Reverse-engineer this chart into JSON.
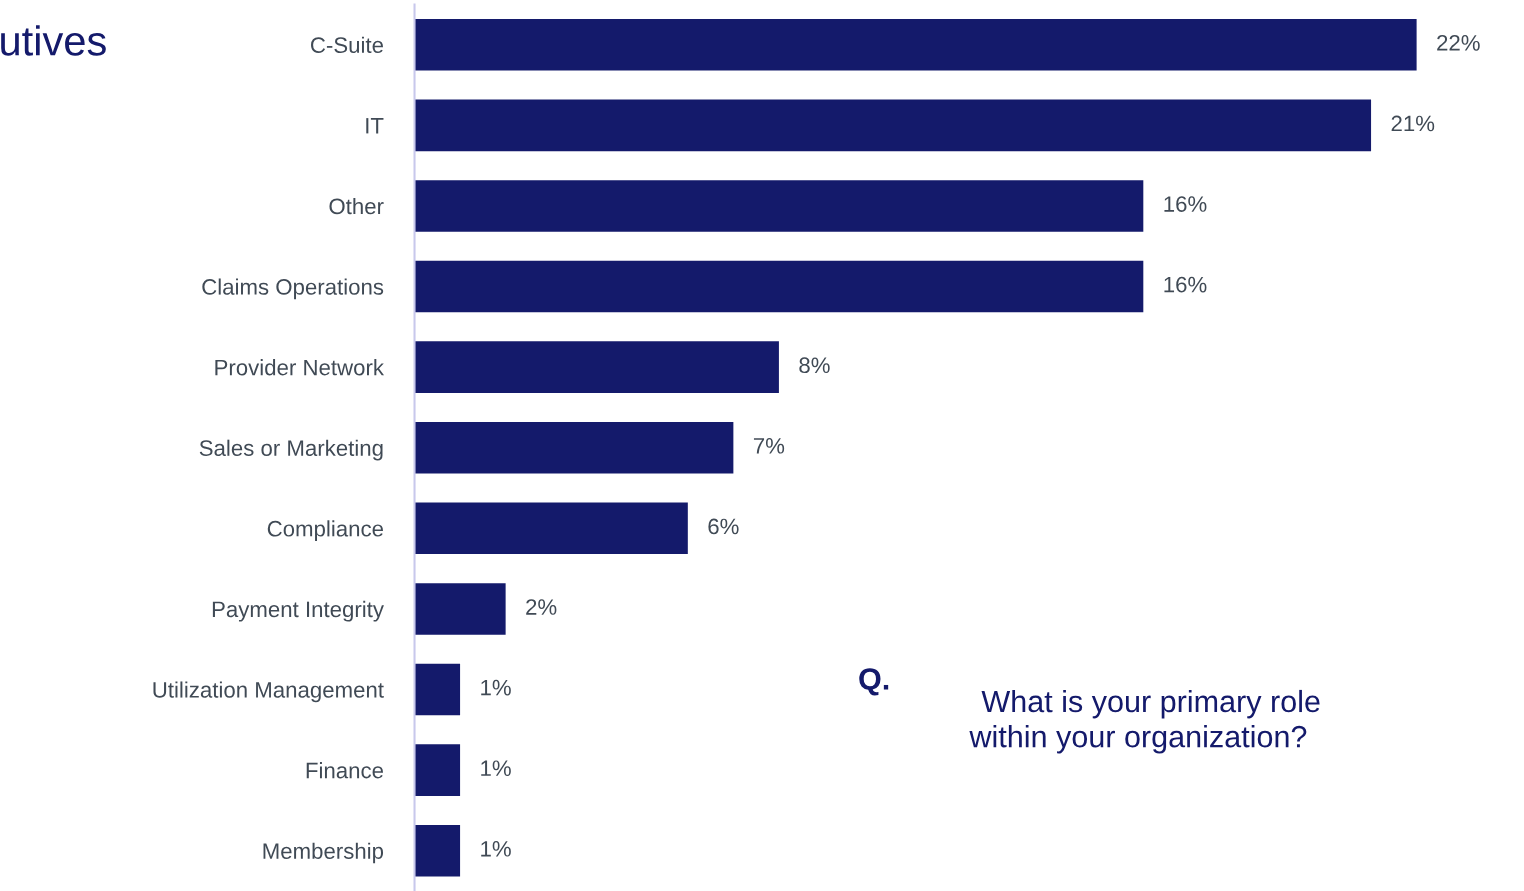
{
  "chart_data": {
    "type": "bar",
    "orientation": "horizontal",
    "categories": [
      "C-Suite",
      "IT",
      "Other",
      "Claims Operations",
      "Provider Network",
      "Sales or Marketing",
      "Compliance",
      "Payment Integrity",
      "Utilization Management",
      "Finance",
      "Membership"
    ],
    "values": [
      22,
      21,
      16,
      16,
      8,
      7,
      6,
      2,
      1,
      1,
      1
    ],
    "color": "#141a6b",
    "value_labels": [
      "22%",
      "21%",
      "16%",
      "16%",
      "8%",
      "7%",
      "6%",
      "2%",
      "1%",
      "1%",
      "1%"
    ],
    "annotations": [
      "utives",
      "Q.",
      "What is your primary role\nwithin your organization?"
    ],
    "grid": false,
    "legend": false,
    "tick_labels": "y"
  }
}
